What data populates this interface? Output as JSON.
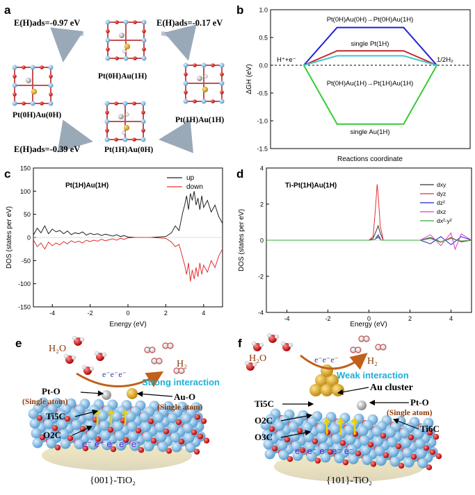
{
  "panels": {
    "a": {
      "letter": "a",
      "configs": [
        "Pt(0H)Au(1H)",
        "Pt(0H)Au(0H)",
        "Pt(1H)Au(1H)",
        "Pt(1H)Au(0H)"
      ],
      "energies": [
        "E(H)ads=-0.97 eV",
        "E(H)ads=-0.17 eV",
        "E(H)ads=-0.39 eV"
      ]
    },
    "b": {
      "letter": "b",
      "labels": {
        "top": "Pt(0H)Au(0H)→Pt(0H)Au(1H)",
        "single_pt": "single Pt(1H)",
        "mid": "Pt(0H)Au(1H)→Pt(1H)Au(1H)",
        "single_au": "single Au(1H)",
        "left": "H⁺+e⁻",
        "right": "1/2H₂"
      }
    },
    "c": {
      "letter": "c",
      "title": "Pt(1H)Au(1H)"
    },
    "d": {
      "letter": "d",
      "title": "Ti-Pt(1H)Au(1H)"
    },
    "e": {
      "letter": "e",
      "labels": {
        "h2o": "H₂O",
        "h2": "H₂",
        "electrons": "e⁻e⁻e⁻",
        "interaction": "Strong interaction",
        "pt_o": "Pt-O",
        "pt_o_sub": "(Single atom)",
        "au_o": "Au-O",
        "au_o_sub": "(Single atom)",
        "ti5c": "Ti5C",
        "o2c": "O2C",
        "subsurface": "e⁻ e⁻ e⁻ e⁻ e⁻",
        "facet": "{001}-TiO₂"
      }
    },
    "f": {
      "letter": "f",
      "labels": {
        "h2o": "H₂O",
        "h2": "H₂",
        "electrons": "e⁻e⁻e⁻",
        "interaction": "Weak interaction",
        "au_cluster": "Au cluster",
        "ti5c": "Ti5C",
        "pt_o": "Pt-O",
        "pt_o_sub": "(Single atom)",
        "o2c": "O2C",
        "o3c": "O3C",
        "ti6c": "Ti6C",
        "subsurface": "e⁻ e⁻ e⁻ e⁻ e⁻",
        "facet": "{101}-TiO₂"
      }
    }
  },
  "chart_data": [
    {
      "id": "b",
      "type": "line",
      "title": "",
      "xlabel": "Reactions coordinate",
      "ylabel": "ΔGH (eV)",
      "xlim": [
        0,
        6
      ],
      "ylim": [
        -1.5,
        1.0
      ],
      "yticks": [
        -1.5,
        -1.0,
        -0.5,
        0.0,
        0.5,
        1.0
      ],
      "ytick_labels": [
        "-1.5",
        "-1.0",
        "-0.5",
        "0.0",
        "0.5",
        "1.0"
      ],
      "x": [
        0,
        1,
        2,
        3,
        4,
        5,
        6
      ],
      "series": [
        {
          "name": "Pt(0H)Au(0H)→Pt(0H)Au(1H)",
          "color": "#1f1fd6",
          "values": [
            null,
            0,
            0.68,
            0.68,
            0.68,
            0,
            null
          ]
        },
        {
          "name": "single Pt(1H)",
          "color": "#c62828",
          "values": [
            null,
            0,
            0.26,
            0.26,
            0.26,
            0,
            null
          ]
        },
        {
          "name": "Pt(0H)Au(1H)→Pt(1H)Au(1H)",
          "color": "#40c8c8",
          "values": [
            null,
            0,
            0.17,
            0.17,
            0.17,
            0,
            null
          ]
        },
        {
          "name": "single Au(1H)",
          "color": "#33cc33",
          "values": [
            null,
            0,
            -1.06,
            -1.06,
            -1.06,
            0,
            null
          ]
        }
      ]
    },
    {
      "id": "c",
      "type": "line",
      "title": "Pt(1H)Au(1H)",
      "xlabel": "Energy (eV)",
      "ylabel": "DOS (states per eV)",
      "xlim": [
        -5,
        5
      ],
      "ylim": [
        -150,
        150
      ],
      "xticks": [
        -4,
        -2,
        0,
        2,
        4
      ],
      "xtick_labels": [
        "-4",
        "-2",
        "0",
        "2",
        "4"
      ],
      "yticks": [
        -150,
        -100,
        -50,
        0,
        50,
        100,
        150
      ],
      "ytick_labels": [
        "-150",
        "-100",
        "-50",
        "0",
        "50",
        "100",
        "150"
      ],
      "legend": "top-right",
      "series": [
        {
          "name": "up",
          "color": "#222222",
          "x": [
            -5,
            -4.8,
            -4.6,
            -4.4,
            -4.2,
            -4,
            -3.8,
            -3.6,
            -3.4,
            -3.2,
            -3,
            -2.8,
            -2.6,
            -2.4,
            -2.2,
            -2,
            -1.8,
            -1.6,
            -1.4,
            -1.2,
            -1,
            -0.8,
            -0.6,
            -0.4,
            -0.2,
            0,
            0.4,
            0.8,
            1.2,
            1.6,
            2,
            2.3,
            2.5,
            2.7,
            2.9,
            3.0,
            3.1,
            3.2,
            3.3,
            3.4,
            3.5,
            3.6,
            3.7,
            3.8,
            3.9,
            4.0,
            4.2,
            4.4,
            4.6,
            4.8,
            5
          ],
          "y": [
            5,
            20,
            10,
            25,
            8,
            18,
            12,
            15,
            8,
            14,
            6,
            10,
            8,
            12,
            5,
            9,
            6,
            8,
            4,
            7,
            5,
            3,
            6,
            2,
            4,
            1,
            0,
            0,
            0,
            1,
            2,
            10,
            25,
            15,
            55,
            70,
            90,
            60,
            95,
            80,
            100,
            70,
            85,
            60,
            90,
            65,
            80,
            55,
            70,
            45,
            30
          ]
        },
        {
          "name": "down",
          "color": "#e03030",
          "x": [
            -5,
            -4.8,
            -4.6,
            -4.4,
            -4.2,
            -4,
            -3.8,
            -3.6,
            -3.4,
            -3.2,
            -3,
            -2.8,
            -2.6,
            -2.4,
            -2.2,
            -2,
            -1.8,
            -1.6,
            -1.4,
            -1.2,
            -1,
            -0.8,
            -0.6,
            -0.4,
            -0.2,
            0,
            0.4,
            0.8,
            1.2,
            1.6,
            2,
            2.3,
            2.5,
            2.7,
            2.9,
            3.0,
            3.1,
            3.2,
            3.3,
            3.4,
            3.5,
            3.6,
            3.7,
            3.8,
            3.9,
            4.0,
            4.2,
            4.4,
            4.6,
            4.8,
            5
          ],
          "y": [
            -5,
            -20,
            -12,
            -25,
            -10,
            -18,
            -12,
            -16,
            -9,
            -14,
            -7,
            -11,
            -8,
            -12,
            -6,
            -9,
            -6,
            -8,
            -4,
            -7,
            -5,
            -3,
            -6,
            -2,
            -4,
            -1,
            0,
            0,
            0,
            -1,
            -2,
            -10,
            -20,
            -15,
            -45,
            -60,
            -80,
            -55,
            -95,
            -70,
            -90,
            -65,
            -85,
            -55,
            -80,
            -60,
            -75,
            -50,
            -65,
            -40,
            -25
          ]
        }
      ]
    },
    {
      "id": "d",
      "type": "line",
      "title": "Ti-Pt(1H)Au(1H)",
      "xlabel": "Energy (eV)",
      "ylabel": "DOS (states per eV)",
      "xlim": [
        -5,
        5
      ],
      "ylim": [
        -4,
        4
      ],
      "xticks": [
        -4,
        -2,
        0,
        2,
        4
      ],
      "xtick_labels": [
        "-4",
        "-2",
        "0",
        "2",
        "4"
      ],
      "yticks": [
        -4,
        -2,
        0,
        2,
        4
      ],
      "ytick_labels": [
        "-4",
        "-2",
        "0",
        "2",
        "4"
      ],
      "legend": "top-right",
      "series": [
        {
          "name": "dxy",
          "color": "#333333",
          "x": [
            -5,
            -1.5,
            0,
            0.2,
            0.35,
            0.45,
            0.55,
            0.7,
            2.5,
            3,
            3.5,
            4,
            4.5,
            5
          ],
          "y": [
            0,
            0,
            0,
            0.1,
            0.5,
            0.8,
            0.4,
            0,
            0,
            0.15,
            -0.1,
            0.12,
            -0.08,
            0
          ]
        },
        {
          "name": "dyz",
          "color": "#e03030",
          "x": [
            -5,
            -1.5,
            0,
            0.2,
            0.3,
            0.4,
            0.45,
            0.55,
            0.7,
            2.5,
            3,
            3.5,
            4,
            4.5,
            5
          ],
          "y": [
            0,
            0,
            0,
            0.2,
            1.5,
            3.1,
            2.5,
            0.8,
            0,
            0,
            0.1,
            -0.12,
            0.15,
            -0.1,
            0
          ]
        },
        {
          "name": "dz²",
          "color": "#2222cc",
          "x": [
            -5,
            -1.5,
            0,
            0.3,
            0.45,
            0.6,
            2.5,
            3,
            3.5,
            4,
            4.5,
            5
          ],
          "y": [
            0,
            0,
            0,
            0.05,
            0.3,
            0,
            0,
            -0.2,
            0.2,
            -0.25,
            0.2,
            0
          ]
        },
        {
          "name": "dxz",
          "color": "#dd33dd",
          "x": [
            -5,
            -1.5,
            0,
            0.3,
            0.45,
            0.6,
            2.5,
            3,
            3.5,
            4,
            4.2,
            4.5,
            5
          ],
          "y": [
            0,
            0,
            0,
            0.05,
            0.2,
            0,
            0,
            0.3,
            -0.3,
            0.4,
            -0.5,
            0.35,
            0
          ]
        },
        {
          "name": "dx²-y²",
          "color": "#33aa33",
          "x": [
            -5,
            -1.5,
            0,
            0.3,
            0.45,
            0.6,
            2.5,
            3,
            3.5,
            4,
            4.5,
            5
          ],
          "y": [
            0,
            0,
            0,
            0.05,
            0.15,
            0,
            0,
            0.1,
            -0.1,
            0.1,
            -0.05,
            0
          ]
        }
      ]
    }
  ]
}
